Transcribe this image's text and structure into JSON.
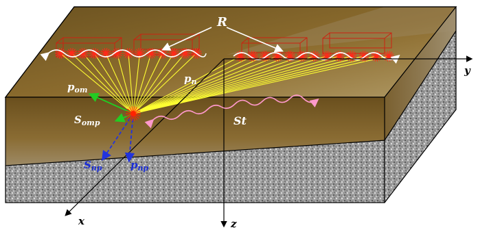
{
  "labels": {
    "R": "R",
    "p_om_main": "p",
    "p_om_sub": "om",
    "S_omp_main": "S",
    "S_omp_sub": "omp",
    "p_n_main": "p",
    "p_n_sub": "n",
    "S_np_main": "S",
    "S_np_sub": "np",
    "p_np_main": "p",
    "p_np_sub": "np",
    "St": "St",
    "axis_x": "x",
    "axis_y": "y",
    "axis_z": "z"
  },
  "colors": {
    "top_face": "#8a6a2e",
    "sediment": "#7a5c22",
    "rock_light": "#c8c8c8",
    "rock_dark": "#4a4a4a",
    "receiver": "#ff2a1a",
    "ray": "#ffff33",
    "source": "#ff2200",
    "green_arrow": "#22cc22",
    "blue_arrow": "#2233dd",
    "pink_wave": "#ff99cc",
    "text_white": "#ffffff",
    "text_blue": "#1a2dd6",
    "axis": "#000000"
  }
}
